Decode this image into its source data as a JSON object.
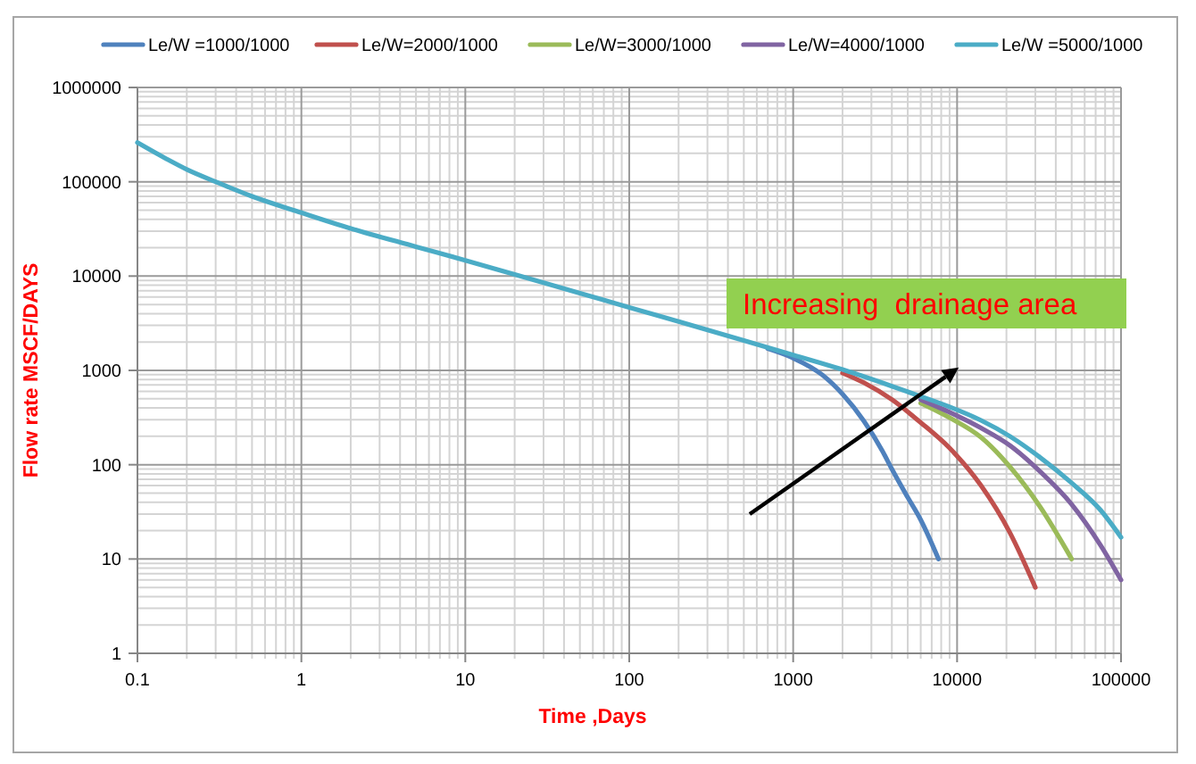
{
  "chart_data": {
    "type": "line",
    "xlabel": "Time ,Days",
    "ylabel": "Flow rate MSCF/DAYS",
    "log": "xy",
    "xlim": [
      0.1,
      100000
    ],
    "ylim": [
      1,
      1000000
    ],
    "xticks": [
      0.1,
      1,
      10,
      100,
      1000,
      10000,
      100000
    ],
    "yticks": [
      1,
      10,
      100,
      1000,
      10000,
      100000,
      1000000
    ],
    "grid": true,
    "legend": "top",
    "annotations": [
      "Increasing  drainage area"
    ],
    "series": [
      {
        "name": "Le/W =1000/1000",
        "color": "#4f81bd",
        "x": [
          700,
          1000,
          1500,
          2000,
          2700,
          3500,
          4000,
          5000,
          6000,
          7700
        ],
        "values": [
          1700,
          1350,
          900,
          560,
          290,
          140,
          90,
          45,
          26,
          10
        ]
      },
      {
        "name": "Le/W=2000/1000",
        "color": "#c0504d",
        "x": [
          2000,
          2700,
          4000,
          6000,
          9000,
          14000,
          21000,
          30000
        ],
        "values": [
          940,
          740,
          490,
          280,
          150,
          60,
          19,
          5
        ]
      },
      {
        "name": "Le/W=3000/1000",
        "color": "#9bbb59",
        "x": [
          6000,
          9000,
          14000,
          21000,
          32000,
          50000
        ],
        "values": [
          450,
          315,
          195,
          95,
          36,
          10
        ]
      },
      {
        "name": "Le/W=4000/1000",
        "color": "#8064a2",
        "x": [
          6000,
          9000,
          14000,
          21000,
          32000,
          50000,
          75000,
          100000
        ],
        "values": [
          490,
          360,
          245,
          160,
          85,
          38,
          14,
          6
        ]
      },
      {
        "name": "Le/W =5000/1000",
        "color": "#4bacc6",
        "x": [
          0.1,
          0.15,
          0.2,
          0.3,
          0.5,
          1,
          2,
          5,
          10,
          20,
          50,
          100,
          200,
          500,
          1000,
          2000,
          4000,
          6000,
          9000,
          14000,
          21000,
          32000,
          50000,
          75000,
          100000
        ],
        "values": [
          260000,
          175000,
          135000,
          100000,
          70000,
          47000,
          32000,
          20500,
          14700,
          10400,
          6600,
          4650,
          3300,
          2080,
          1460,
          1020,
          680,
          530,
          410,
          295,
          200,
          120,
          64,
          33,
          17
        ]
      }
    ]
  }
}
